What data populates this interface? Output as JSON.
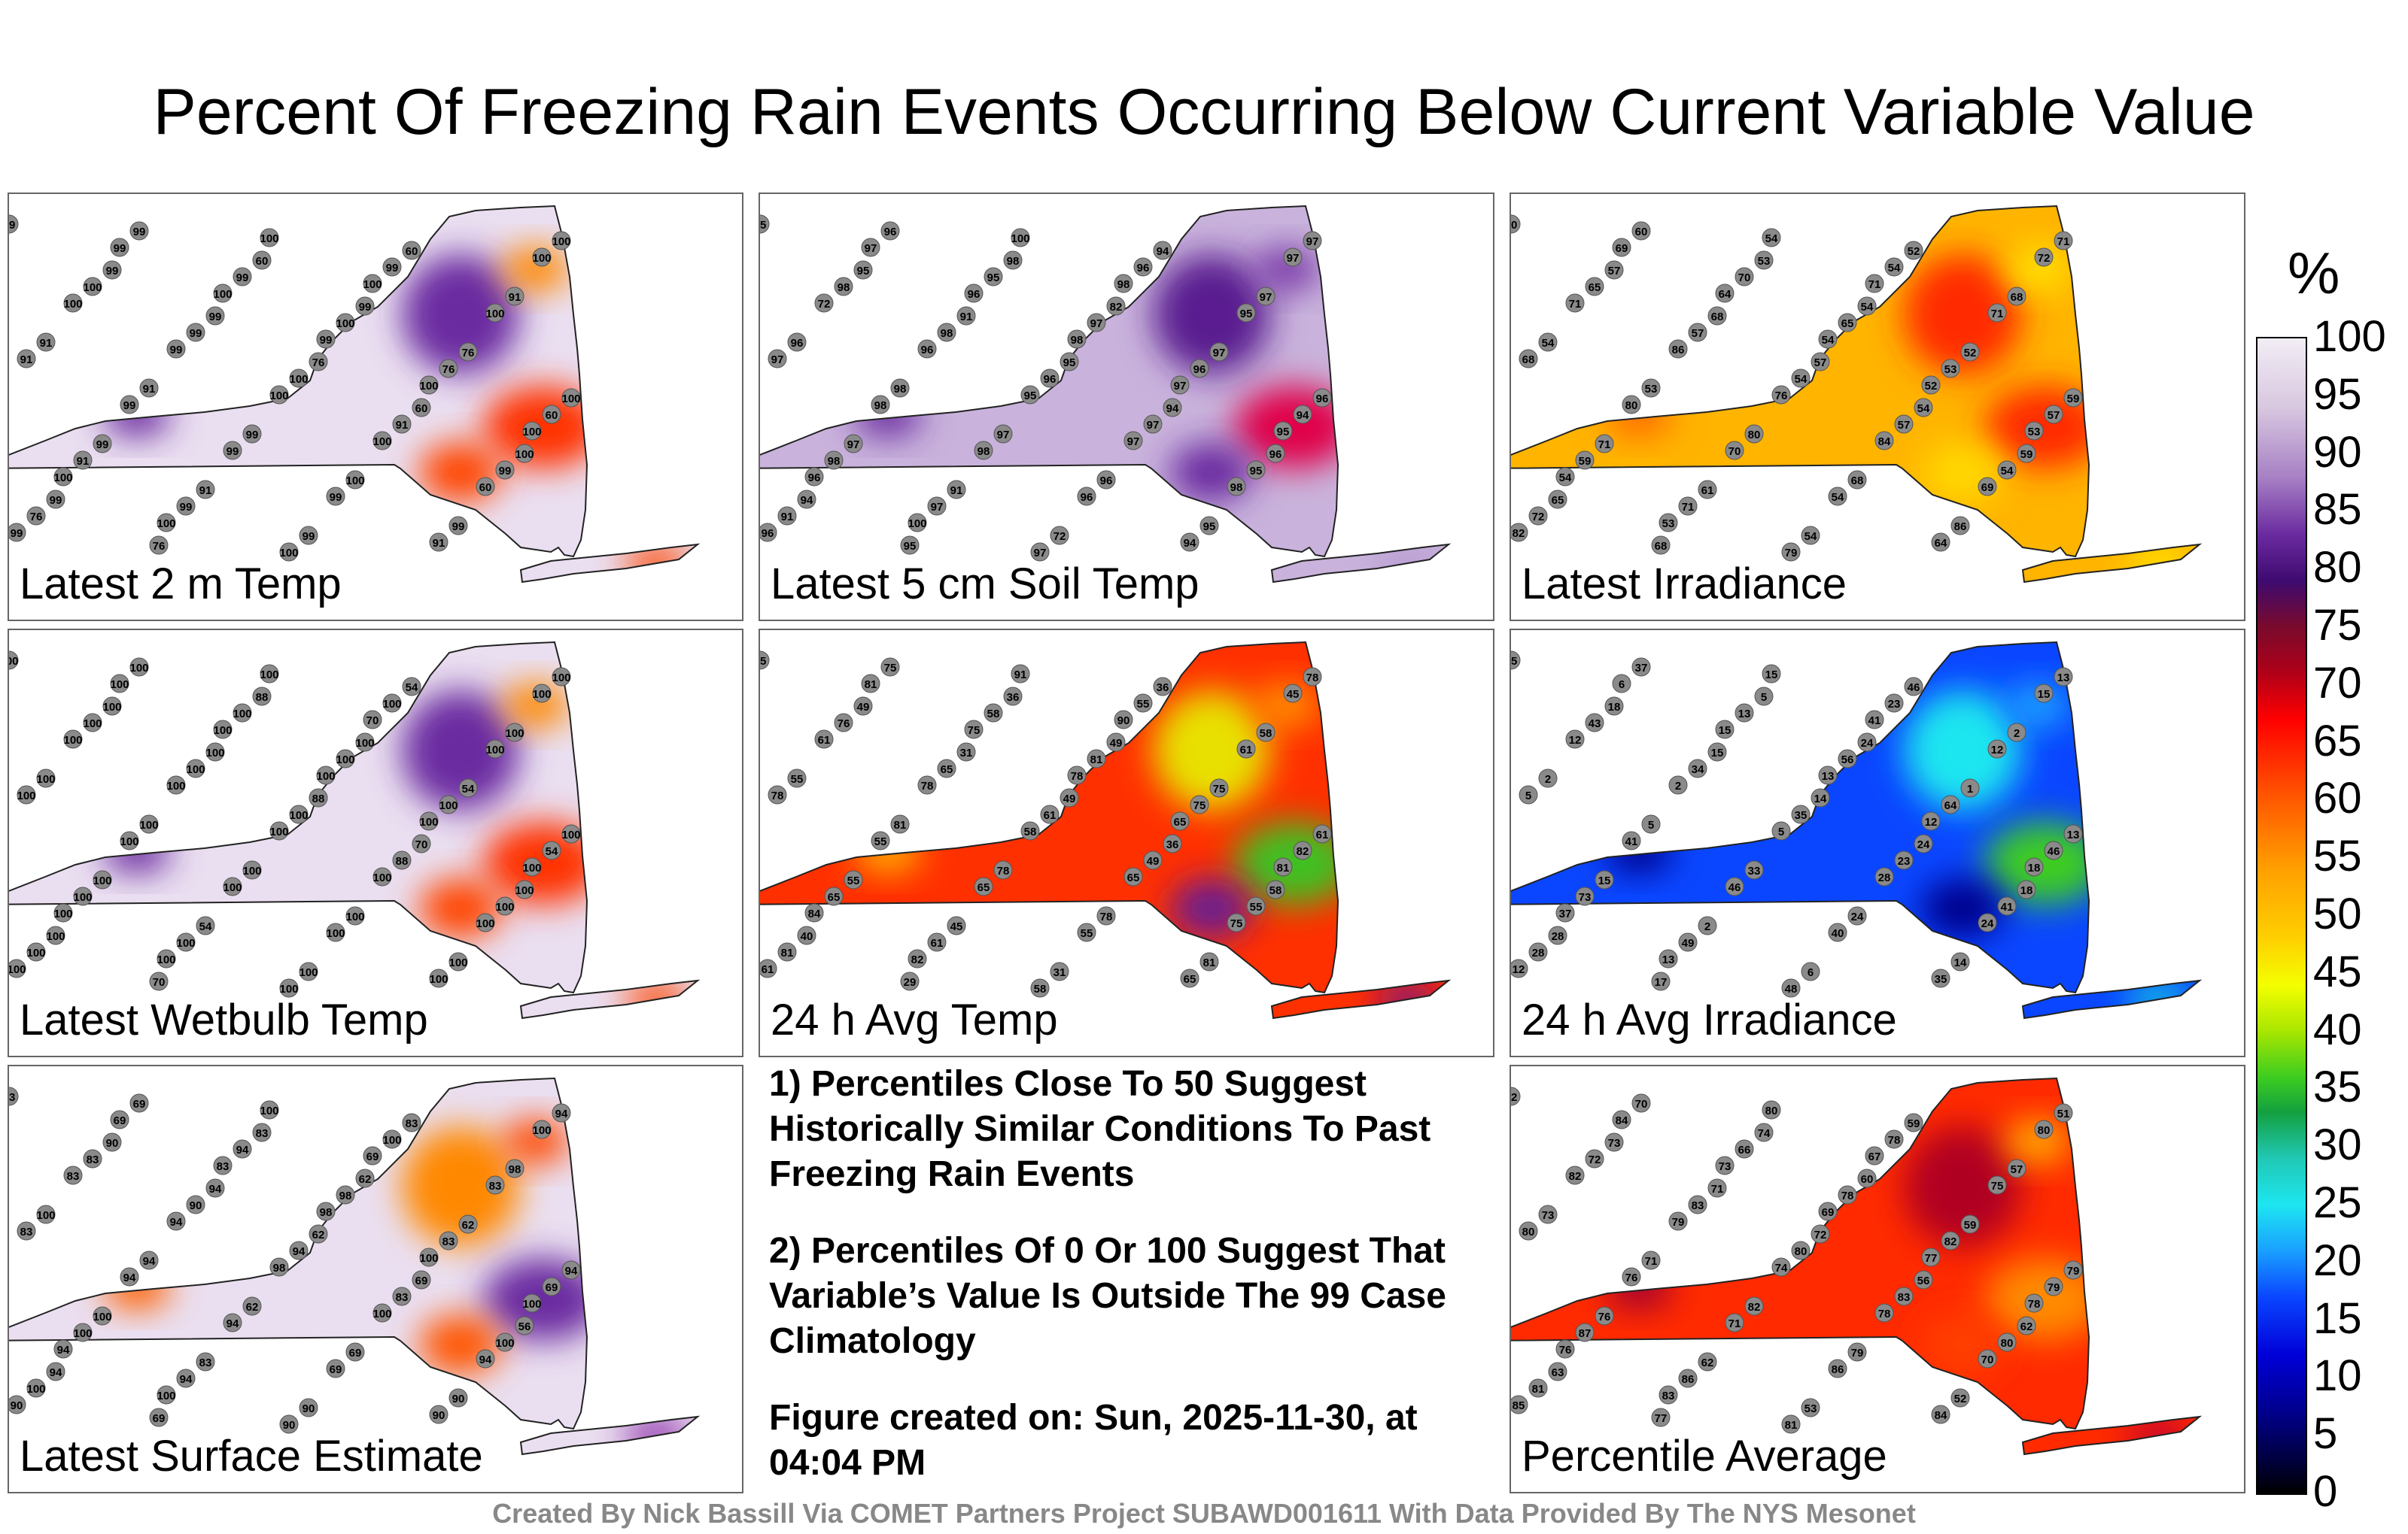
{
  "title": "Percent Of Freezing Rain Events Occurring Below Current Variable Value",
  "colorbar": {
    "unit": "%",
    "ticks": [
      "100",
      "95",
      "90",
      "85",
      "80",
      "75",
      "70",
      "65",
      "60",
      "55",
      "50",
      "45",
      "40",
      "35",
      "30",
      "25",
      "20",
      "15",
      "10",
      "5",
      "0"
    ]
  },
  "panels": [
    {
      "label": "Latest 2 m Temp",
      "bg": "#eadff0",
      "blobs": [
        {
          "c": "#6b2aa0"
        },
        {
          "c": "#6b2aa0"
        },
        {
          "c": "#ff3300"
        },
        {
          "c": "#ff8800"
        },
        {
          "c": "#ff4400"
        },
        {
          "c": "#ff4400"
        }
      ],
      "stations": [
        "99",
        "99",
        "99",
        "76",
        "60",
        "100",
        "99",
        "76",
        "60",
        "99",
        "76",
        "100",
        "99",
        "91",
        "99",
        "60",
        "91",
        "91",
        "91",
        "99",
        "100",
        "99",
        "100",
        "100",
        "99",
        "100",
        "91",
        "99",
        "76",
        "99",
        "99",
        "100",
        "76",
        "60",
        "91",
        "99",
        "100",
        "99",
        "100",
        "91",
        "99",
        "99",
        "99",
        "91",
        "100",
        "100",
        "99",
        "100",
        "100",
        "60",
        "99",
        "99",
        "100",
        "99",
        "100",
        "100",
        "100",
        "100",
        "100",
        "100"
      ]
    },
    {
      "label": "Latest 5 cm Soil Temp",
      "bg": "#c9b3dc",
      "blobs": [
        {
          "c": "#6b2aa0"
        },
        {
          "c": "#5a1d90"
        },
        {
          "c": "#e0004a"
        },
        {
          "c": "#7a3aa8"
        },
        {
          "c": "#6b2aa0"
        },
        {
          "c": "#b69ad0"
        }
      ],
      "stations": [
        "95",
        "95",
        "91",
        "95",
        "94",
        "96",
        "94",
        "95",
        "98",
        "82",
        "97",
        "96",
        "97",
        "91",
        "72",
        "94",
        "97",
        "96",
        "98",
        "97",
        "96",
        "95",
        "97",
        "98",
        "98",
        "96",
        "97",
        "95",
        "91",
        "96",
        "95",
        "97",
        "96",
        "94",
        "98",
        "97",
        "97",
        "96",
        "95",
        "97",
        "98",
        "98",
        "96",
        "94",
        "97",
        "72",
        "96",
        "95",
        "97",
        "98",
        "96",
        "97",
        "96",
        "98",
        "97",
        "95",
        "96",
        "100",
        "100",
        "98"
      ]
    },
    {
      "label": "Latest Irradiance",
      "bg": "#ffb400",
      "blobs": [
        {
          "c": "#ff6a00"
        },
        {
          "c": "#ff2a00"
        },
        {
          "c": "#ff2a00"
        },
        {
          "c": "#ffe000"
        },
        {
          "c": "#ffd800"
        },
        {
          "c": "#ffe400"
        }
      ],
      "stations": [
        "60",
        "57",
        "68",
        "57",
        "54",
        "59",
        "65",
        "68",
        "53",
        "54",
        "52",
        "59",
        "71",
        "61",
        "54",
        "52",
        "68",
        "54",
        "53",
        "80",
        "68",
        "86",
        "71",
        "65",
        "57",
        "54",
        "57",
        "54",
        "72",
        "60",
        "70",
        "65",
        "53",
        "57",
        "59",
        "71",
        "79",
        "54",
        "71",
        "68",
        "80",
        "70",
        "54",
        "64",
        "72",
        "71",
        "86",
        "76",
        "84",
        "69",
        "82",
        "69",
        "64",
        "54",
        "52",
        "53",
        "54",
        "53",
        "54",
        "71"
      ]
    },
    {
      "label": "Latest Wetbulb Temp",
      "bg": "#eadff0",
      "blobs": [
        {
          "c": "#6b2aa0"
        },
        {
          "c": "#6b2aa0"
        },
        {
          "c": "#ff3300"
        },
        {
          "c": "#ff8800"
        },
        {
          "c": "#ff4400"
        },
        {
          "c": "#ff4400"
        }
      ],
      "stations": [
        "100",
        "100",
        "100",
        "88",
        "70",
        "100",
        "100",
        "70",
        "88",
        "100",
        "54",
        "100",
        "100",
        "54",
        "100",
        "54",
        "100",
        "100",
        "100",
        "100",
        "100",
        "100",
        "100",
        "100",
        "100",
        "100",
        "88",
        "100",
        "100",
        "100",
        "100",
        "100",
        "100",
        "54",
        "100",
        "100",
        "100",
        "100",
        "100",
        "100",
        "100",
        "100",
        "100",
        "100",
        "100",
        "100",
        "100",
        "100",
        "100",
        "100",
        "100",
        "100",
        "100",
        "100",
        "100",
        "100",
        "100",
        "100",
        "100",
        "70"
      ]
    },
    {
      "label": "24 h Avg Temp",
      "bg": "#ff3000",
      "blobs": [
        {
          "c": "#ffb000"
        },
        {
          "c": "#e8e000"
        },
        {
          "c": "#40c020"
        },
        {
          "c": "#ff9000"
        },
        {
          "c": "#6a1a90"
        },
        {
          "c": "#7a1080"
        }
      ],
      "stations": [
        "55",
        "49",
        "31",
        "49",
        "36",
        "58",
        "40",
        "29",
        "36",
        "49",
        "75",
        "61",
        "55",
        "45",
        "31",
        "36",
        "58",
        "55",
        "81",
        "78",
        "78",
        "81",
        "78",
        "76",
        "65",
        "61",
        "49",
        "55",
        "81",
        "75",
        "58",
        "81",
        "75",
        "82",
        "65",
        "61",
        "58",
        "55",
        "61",
        "78",
        "55",
        "65",
        "55",
        "65",
        "45",
        "61",
        "78",
        "58",
        "65",
        "75",
        "61",
        "81",
        "75",
        "78",
        "65",
        "81",
        "84",
        "82",
        "91",
        "90"
      ]
    },
    {
      "label": "24 h Avg Irradiance",
      "bg": "#0a46ff",
      "blobs": [
        {
          "c": "#00008c"
        },
        {
          "c": "#1ee6f0"
        },
        {
          "c": "#3ccc20"
        },
        {
          "c": "#1ea0ff"
        },
        {
          "c": "#00008c"
        },
        {
          "c": "#19c8e0"
        }
      ],
      "stations": [
        "15",
        "18",
        "15",
        "14",
        "24",
        "18",
        "28",
        "17",
        "5",
        "24",
        "1",
        "13",
        "15",
        "2",
        "6",
        "46",
        "2",
        "2",
        "5",
        "33",
        "24",
        "14",
        "13",
        "43",
        "34",
        "35",
        "23",
        "41",
        "28",
        "37",
        "13",
        "56",
        "64",
        "46",
        "73",
        "49",
        "48",
        "23",
        "12",
        "5",
        "41",
        "46",
        "40",
        "35",
        "15",
        "12",
        "2",
        "5",
        "28",
        "24",
        "12",
        "6",
        "15",
        "13",
        "12",
        "18",
        "37",
        "13",
        "15",
        "41"
      ]
    },
    {
      "label": "Latest Surface Estimate",
      "bg": "#eadff0",
      "blobs": [
        {
          "c": "#ff6000"
        },
        {
          "c": "#ff8800"
        },
        {
          "c": "#6b2aa0"
        },
        {
          "c": "#ff4a00"
        },
        {
          "c": "#ff5500"
        },
        {
          "c": "#8b2aa8"
        }
      ],
      "stations": [
        "83",
        "90",
        "94",
        "62",
        "69",
        "56",
        "94",
        "69",
        "83",
        "62",
        "62",
        "94",
        "100",
        "83",
        "90",
        "83",
        "98",
        "100",
        "94",
        "62",
        "69",
        "90",
        "94",
        "83",
        "90",
        "94",
        "83",
        "100",
        "100",
        "69",
        "94",
        "98",
        "83",
        "69",
        "100",
        "94",
        "90",
        "100",
        "83",
        "83",
        "94",
        "94",
        "69",
        "90",
        "100",
        "83",
        "94",
        "98",
        "100",
        "94",
        "90",
        "69",
        "83",
        "98",
        "100",
        "100",
        "94",
        "100",
        "100",
        "69"
      ]
    },
    {
      "label": "Percentile Average",
      "bg": "#ff2a00",
      "blobs": [
        {
          "c": "#a00030"
        },
        {
          "c": "#b00020"
        },
        {
          "c": "#ff8a00"
        },
        {
          "c": "#ffa800"
        },
        {
          "c": "#ff4000"
        },
        {
          "c": "#c00030"
        }
      ],
      "stations": [
        "72",
        "73",
        "71",
        "72",
        "56",
        "62",
        "63",
        "77",
        "74",
        "60",
        "59",
        "79",
        "76",
        "62",
        "53",
        "59",
        "57",
        "73",
        "71",
        "82",
        "79",
        "52",
        "51",
        "72",
        "83",
        "80",
        "83",
        "80",
        "81",
        "70",
        "66",
        "78",
        "82",
        "79",
        "87",
        "86",
        "81",
        "78",
        "75",
        "80",
        "76",
        "71",
        "86",
        "84",
        "80",
        "82",
        "79",
        "74",
        "78",
        "70",
        "85",
        "84",
        "73",
        "69",
        "77",
        "78",
        "76",
        "83",
        "80",
        "67"
      ]
    }
  ],
  "notes": [
    "1) Percentiles Close To 50 Suggest Historically Similar Conditions To Past Freezing Rain Events",
    "2) Percentiles Of 0 Or 100 Suggest That Variable’s Value Is Outside The 99 Case Climatology",
    "Figure created on: Sun, 2025-11-30, at 04:04 PM"
  ],
  "footer": "Created By Nick Bassill Via COMET Partners Project SUBAWD001611 With Data Provided By The NYS Mesonet"
}
